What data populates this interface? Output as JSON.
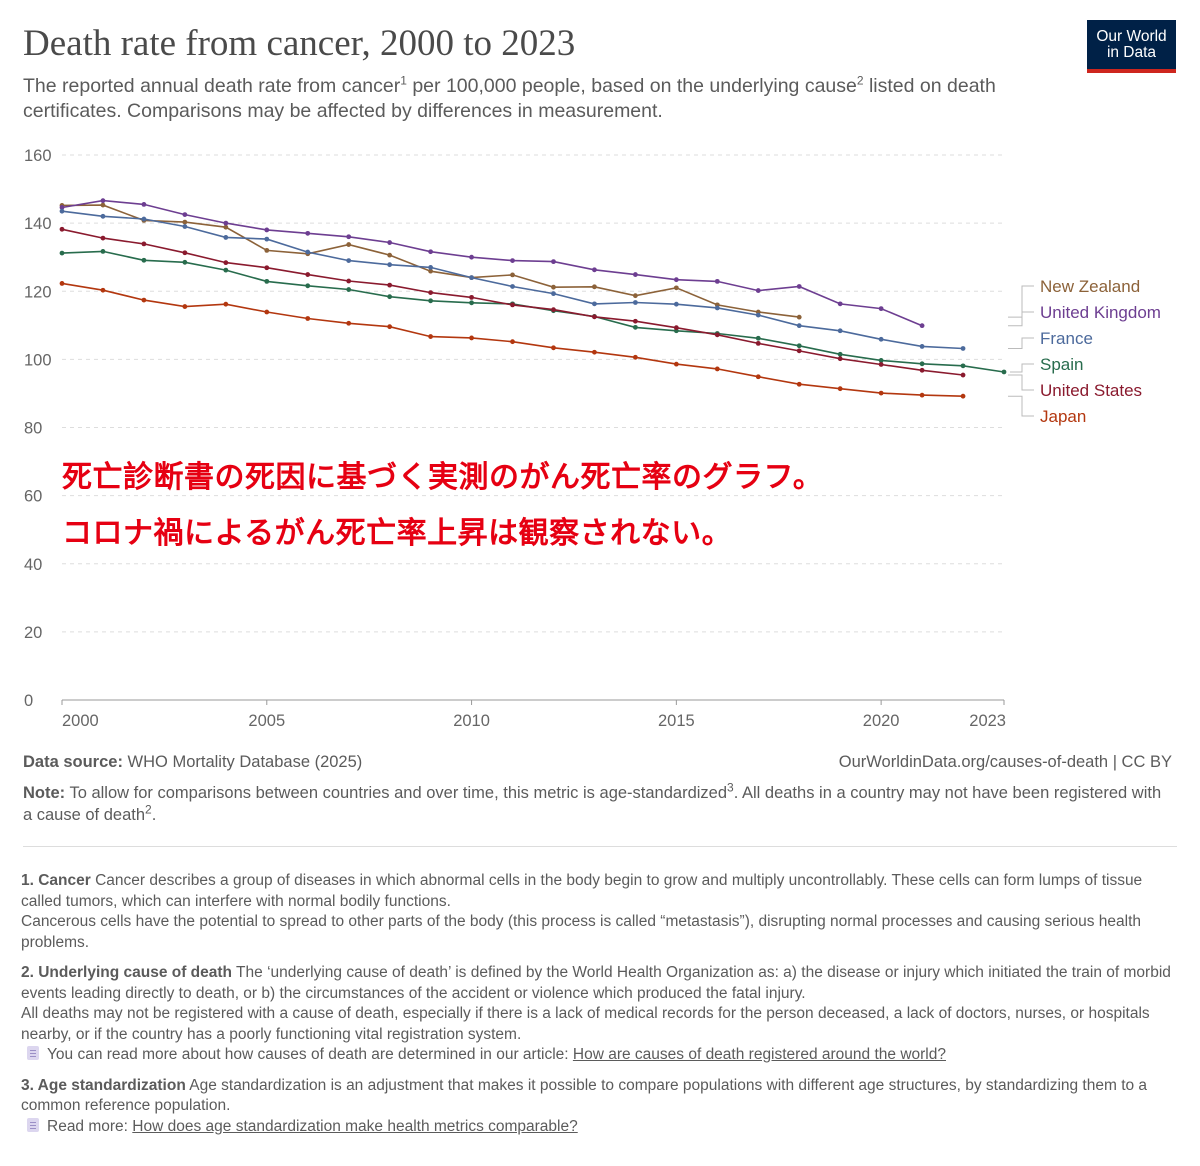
{
  "header": {
    "title": "Death rate from cancer, 2000 to 2023",
    "subtitle_part1": "The reported annual death rate from cancer",
    "subtitle_sup1": "1",
    "subtitle_part2": " per 100,000 people, based on the underlying cause",
    "subtitle_sup2": "2",
    "subtitle_part3": " listed on death certificates. Comparisons may be affected by differences in measurement.",
    "logo_line1": "Our World",
    "logo_line2": "in Data"
  },
  "overlay": {
    "line1": "死亡診断書の死因に基づく実測のがん死亡率のグラフ。",
    "line2": "コロナ禍によるがん死亡率上昇は観察されない。"
  },
  "footer": {
    "source_label": "Data source:",
    "source_text": " WHO Mortality Database (2025)",
    "credit": "OurWorldinData.org/causes-of-death | CC BY",
    "note_label": "Note:",
    "note_text1": " To allow for comparisons between countries and over time, this metric is age-standardized",
    "note_sup": "3",
    "note_text2": ". All deaths in a country may not have been registered with a cause of death",
    "note_sup2": "2",
    "note_text3": "."
  },
  "footnotes": [
    {
      "label": "1. Cancer",
      "text": " Cancer describes a group of diseases in which abnormal cells in the body begin to grow and multiply uncontrollably. These cells can form lumps of tissue called tumors, which can interfere with normal bodily functions.",
      "extra": "Cancerous cells have the potential to spread to other parts of the body (this process is called “metastasis”), disrupting normal processes and causing serious health problems."
    },
    {
      "label": "2. Underlying cause of death",
      "text": " The ‘underlying cause of death’ is defined by the World Health Organization as: a) the disease or injury which initiated the train of morbid events leading directly to death, or b) the circumstances of the accident or violence which produced the fatal injury.",
      "extra": "All deaths may not be registered with a cause of death, especially if there is a lack of medical records for the person deceased, a lack of doctors, nurses, or hospitals nearby, or if the country has a poorly functioning vital registration system.",
      "read_prefix": "You can read more about how causes of death are determined in our article: ",
      "read_link": "How are causes of death registered around the world?"
    },
    {
      "label": "3. Age standardization",
      "text": " Age standardization is an adjustment that makes it possible to compare populations with different age structures, by standardizing them to a common reference population.",
      "read_prefix": "Read more: ",
      "read_link": "How does age standardization make health metrics comparable?"
    }
  ],
  "chart_data": {
    "type": "line",
    "title": "Death rate from cancer, 2000 to 2023",
    "xlabel": "",
    "ylabel": "",
    "xlim": [
      2000,
      2023
    ],
    "ylim": [
      0,
      160
    ],
    "x_ticks": [
      2000,
      2005,
      2010,
      2015,
      2020,
      2023
    ],
    "y_ticks": [
      0,
      20,
      40,
      60,
      80,
      100,
      120,
      140,
      160
    ],
    "grid": "horizontal dashed",
    "legend": "right, line-end labels",
    "series": [
      {
        "name": "New Zealand",
        "color": "#8c6239",
        "x": [
          2000,
          2001,
          2002,
          2003,
          2004,
          2005,
          2006,
          2007,
          2008,
          2009,
          2010,
          2011,
          2012,
          2013,
          2014,
          2015,
          2016,
          2017,
          2018
        ],
        "y": [
          145.2,
          145.3,
          140.8,
          140.3,
          138.8,
          132.0,
          131.0,
          133.7,
          130.6,
          125.9,
          124.0,
          124.8,
          121.2,
          121.3,
          118.7,
          121.0,
          116.0,
          113.9,
          112.4
        ]
      },
      {
        "name": "United Kingdom",
        "color": "#6d3e91",
        "x": [
          2000,
          2001,
          2002,
          2003,
          2004,
          2005,
          2006,
          2007,
          2008,
          2009,
          2010,
          2011,
          2012,
          2013,
          2014,
          2015,
          2016,
          2017,
          2018,
          2019,
          2020,
          2021
        ],
        "y": [
          144.6,
          146.6,
          145.5,
          142.5,
          140.0,
          138.0,
          137.0,
          136.0,
          134.3,
          131.6,
          130.0,
          129.0,
          128.7,
          126.3,
          124.9,
          123.4,
          122.9,
          120.2,
          121.4,
          116.3,
          114.9,
          109.9
        ]
      },
      {
        "name": "France",
        "color": "#4c6a9c",
        "x": [
          2000,
          2001,
          2002,
          2003,
          2004,
          2005,
          2006,
          2007,
          2008,
          2009,
          2010,
          2011,
          2012,
          2013,
          2014,
          2015,
          2016,
          2017,
          2018,
          2019,
          2020,
          2021,
          2022
        ],
        "y": [
          143.5,
          142.0,
          141.2,
          139.0,
          135.8,
          135.3,
          131.5,
          129.0,
          127.8,
          127.0,
          124.0,
          121.4,
          119.3,
          116.3,
          116.7,
          116.2,
          115.1,
          113.0,
          109.9,
          108.4,
          105.9,
          103.8,
          103.2
        ]
      },
      {
        "name": "Spain",
        "color": "#286c4d",
        "x": [
          2000,
          2001,
          2002,
          2003,
          2004,
          2005,
          2006,
          2007,
          2008,
          2009,
          2010,
          2011,
          2012,
          2013,
          2014,
          2015,
          2016,
          2017,
          2018,
          2019,
          2020,
          2021,
          2022,
          2023
        ],
        "y": [
          131.2,
          131.7,
          129.1,
          128.5,
          126.2,
          122.9,
          121.6,
          120.5,
          118.4,
          117.2,
          116.6,
          116.3,
          114.3,
          112.6,
          109.4,
          108.4,
          107.6,
          106.2,
          104.0,
          101.5,
          99.7,
          98.7,
          98.1,
          96.3
        ]
      },
      {
        "name": "United States",
        "color": "#8a1a2e",
        "x": [
          2000,
          2001,
          2002,
          2003,
          2004,
          2005,
          2006,
          2007,
          2008,
          2009,
          2010,
          2011,
          2012,
          2013,
          2014,
          2015,
          2016,
          2017,
          2018,
          2019,
          2020,
          2021,
          2022
        ],
        "y": [
          138.2,
          135.6,
          133.9,
          131.3,
          128.4,
          126.9,
          124.9,
          123.0,
          121.8,
          119.6,
          118.2,
          116.0,
          114.6,
          112.5,
          111.2,
          109.3,
          107.2,
          104.7,
          102.5,
          100.2,
          98.5,
          96.8,
          95.4
        ]
      },
      {
        "name": "Japan",
        "color": "#b3370f",
        "x": [
          2000,
          2001,
          2002,
          2003,
          2004,
          2005,
          2006,
          2007,
          2008,
          2009,
          2010,
          2011,
          2012,
          2013,
          2014,
          2015,
          2016,
          2017,
          2018,
          2019,
          2020,
          2021,
          2022
        ],
        "y": [
          122.3,
          120.3,
          117.4,
          115.5,
          116.2,
          113.9,
          112.0,
          110.6,
          109.6,
          106.7,
          106.3,
          105.2,
          103.4,
          102.1,
          100.6,
          98.6,
          97.2,
          94.9,
          92.7,
          91.4,
          90.1,
          89.5,
          89.2
        ]
      }
    ]
  }
}
